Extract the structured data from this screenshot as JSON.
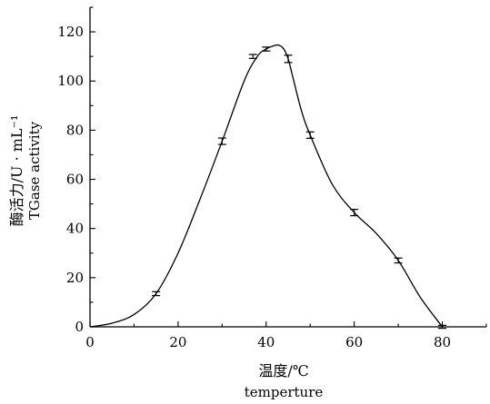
{
  "chart_data": {
    "type": "line",
    "title": "",
    "xlabel": "温度/℃",
    "xlabel_en": "temperture",
    "ylabel": "酶活力/U · mL⁻¹",
    "ylabel_en": "TGase activity",
    "xlim": [
      0,
      90
    ],
    "ylim": [
      0,
      130
    ],
    "xticks": [
      0,
      20,
      40,
      60,
      80
    ],
    "yticks": [
      0,
      20,
      40,
      60,
      80,
      100,
      120
    ],
    "grid": false,
    "legend": "none",
    "series": [
      {
        "x": [
          15,
          30,
          37,
          40,
          45,
          50,
          60,
          70,
          80
        ],
        "y": [
          13.5,
          75.5,
          110,
          113,
          109,
          78,
          46.5,
          27,
          0
        ],
        "error": [
          0.8,
          1.3,
          0.8,
          0.8,
          1.5,
          1.3,
          1.3,
          1.0,
          0.6
        ]
      }
    ],
    "curve": {
      "x": [
        0,
        5,
        10,
        15,
        20,
        25,
        30,
        35,
        38,
        40,
        42,
        43,
        44,
        45,
        46,
        48,
        50,
        55,
        60,
        65,
        70,
        75,
        80
      ],
      "y": [
        0,
        1.5,
        5,
        13.5,
        30,
        52,
        75.5,
        100,
        110,
        113,
        114.5,
        114.5,
        113,
        109,
        102,
        88,
        78,
        58,
        46.5,
        38,
        27,
        12,
        0
      ]
    }
  }
}
